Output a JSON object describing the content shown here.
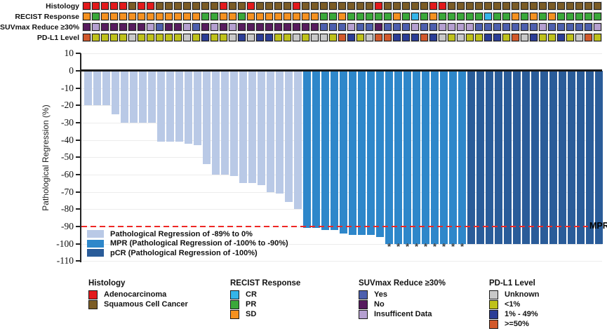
{
  "tracks": {
    "rows": [
      {
        "key": "histology",
        "label": "Histology",
        "cells": [
          "A",
          "A",
          "A",
          "A",
          "A",
          "S",
          "A",
          "A",
          "S",
          "S",
          "S",
          "S",
          "S",
          "S",
          "S",
          "A",
          "S",
          "S",
          "A",
          "S",
          "S",
          "S",
          "S",
          "A",
          "S",
          "S",
          "S",
          "S",
          "S",
          "S",
          "S",
          "S",
          "A",
          "S",
          "S",
          "S",
          "S",
          "S",
          "A",
          "A",
          "S",
          "S",
          "S",
          "S",
          "S",
          "S",
          "S",
          "S",
          "S",
          "S",
          "S",
          "S",
          "S",
          "S",
          "S",
          "S",
          "S"
        ]
      },
      {
        "key": "recist",
        "label": "RECIST Response",
        "cells": [
          "SD",
          "PR",
          "SD",
          "SD",
          "SD",
          "SD",
          "SD",
          "SD",
          "SD",
          "SD",
          "SD",
          "SD",
          "SD",
          "PR",
          "PR",
          "SD",
          "SD",
          "PR",
          "SD",
          "SD",
          "SD",
          "SD",
          "SD",
          "SD",
          "SD",
          "SD",
          "PR",
          "PR",
          "SD",
          "PR",
          "PR",
          "PR",
          "PR",
          "PR",
          "SD",
          "PR",
          "CR",
          "PR",
          "SD",
          "PR",
          "PR",
          "PR",
          "PR",
          "PR",
          "CR",
          "PR",
          "PR",
          "SD",
          "PR",
          "SD",
          "PR",
          "SD",
          "PR",
          "PR",
          "PR",
          "PR",
          "PR"
        ]
      },
      {
        "key": "suvmax",
        "label": "SUVmax Reduce ≥30%",
        "cells": [
          "N",
          "I",
          "N",
          "N",
          "N",
          "N",
          "N",
          "I",
          "Y",
          "N",
          "N",
          "I",
          "Y",
          "N",
          "I",
          "N",
          "I",
          "N",
          "N",
          "N",
          "N",
          "N",
          "N",
          "N",
          "N",
          "N",
          "Y",
          "Y",
          "Y",
          "I",
          "Y",
          "Y",
          "N",
          "Y",
          "Y",
          "Y",
          "I",
          "Y",
          "Y",
          "I",
          "I",
          "I",
          "I",
          "Y",
          "Y",
          "Y",
          "Y",
          "Y",
          "Y",
          "Y",
          "I",
          "Y",
          "Y",
          "Y",
          "Y",
          "Y",
          "I"
        ]
      },
      {
        "key": "pdl1",
        "label": "PD-L1 Level",
        "cells": [
          "H",
          "L",
          "L",
          "L",
          "L",
          "U",
          "L",
          "L",
          "L",
          "L",
          "L",
          "U",
          "L",
          "M",
          "L",
          "L",
          "U",
          "M",
          "U",
          "M",
          "M",
          "L",
          "L",
          "U",
          "L",
          "U",
          "U",
          "L",
          "H",
          "M",
          "L",
          "U",
          "H",
          "H",
          "M",
          "M",
          "M",
          "H",
          "M",
          "U",
          "L",
          "U",
          "L",
          "L",
          "M",
          "M",
          "L",
          "H",
          "U",
          "M",
          "L",
          "L",
          "M",
          "L",
          "U",
          "H",
          "L"
        ]
      }
    ],
    "palettes": {
      "histology": {
        "A": "#e31a1c",
        "S": "#7b5c26"
      },
      "recist": {
        "CR": "#35b5e9",
        "PR": "#3aa83a",
        "SD": "#f59120"
      },
      "suvmax": {
        "Y": "#4d5fae",
        "N": "#571b5e",
        "I": "#b59fd0"
      },
      "pdl1": {
        "U": "#c8c8c8",
        "L": "#bec11b",
        "M": "#2b3d96",
        "H": "#d2592b"
      }
    }
  },
  "chart_data": {
    "type": "bar",
    "title": "",
    "xlabel": "",
    "ylabel": "Pathological Regression (%)",
    "ylim": [
      -110,
      10
    ],
    "yticks": [
      10,
      0,
      -10,
      -20,
      -30,
      -40,
      -50,
      -60,
      -70,
      -80,
      -90,
      -100,
      -110
    ],
    "grid": true,
    "values": [
      -20,
      -20,
      -20,
      -25,
      -30,
      -30,
      -30,
      -30,
      -41,
      -41,
      -41,
      -42,
      -43,
      -54,
      -60,
      -60,
      -61,
      -65,
      -65,
      -66,
      -70,
      -71,
      -76,
      -80,
      -91,
      -91,
      -92,
      -92,
      -94,
      -95,
      -95,
      -95,
      -96,
      -100,
      -100,
      -100,
      -100,
      -100,
      -100,
      -100,
      -100,
      -100,
      -100,
      -100,
      -100,
      -100,
      -100,
      -100,
      -100,
      -100,
      -100,
      -100,
      -100,
      -100,
      -100,
      -100,
      -100
    ],
    "groups": [
      "L",
      "L",
      "L",
      "L",
      "L",
      "L",
      "L",
      "L",
      "L",
      "L",
      "L",
      "L",
      "L",
      "L",
      "L",
      "L",
      "L",
      "L",
      "L",
      "L",
      "L",
      "L",
      "L",
      "L",
      "M",
      "M",
      "M",
      "M",
      "M",
      "M",
      "M",
      "M",
      "M",
      "M",
      "M",
      "M",
      "M",
      "M",
      "M",
      "M",
      "M",
      "M",
      "D",
      "D",
      "D",
      "D",
      "D",
      "D",
      "D",
      "D",
      "D",
      "D",
      "D",
      "D",
      "D",
      "D",
      "D"
    ],
    "group_colors": {
      "L": "#b9c9e6",
      "M": "#2e87ca",
      "D": "#2a5c99"
    },
    "asterisk_bars": [
      34,
      35,
      36,
      37,
      38,
      39,
      40,
      41,
      42
    ],
    "asterisk_symbol": "*",
    "reference_line": {
      "value": -90,
      "label": "MPR",
      "color": "#ee2724",
      "style": "dashed"
    }
  },
  "inner_legend": [
    {
      "group": "L",
      "label": "Pathological Regression of -89% to 0%"
    },
    {
      "group": "M",
      "label": "MPR (Pathological Regression of -100% to -90%)"
    },
    {
      "group": "D",
      "label": "pCR (Pathological Regression of -100%)"
    }
  ],
  "bottom_legends": [
    {
      "title": "Histology",
      "items": [
        {
          "label": "Adenocarcinoma",
          "color": "#e31a1c"
        },
        {
          "label": "Squamous Cell Cancer",
          "color": "#7b5c26"
        }
      ]
    },
    {
      "title": "RECIST Response",
      "items": [
        {
          "label": "CR",
          "color": "#35b5e9"
        },
        {
          "label": "PR",
          "color": "#3aa83a"
        },
        {
          "label": "SD",
          "color": "#f59120"
        }
      ]
    },
    {
      "title": "SUVmax Reduce ≥30%",
      "items": [
        {
          "label": "Yes",
          "color": "#4d5fae"
        },
        {
          "label": "No",
          "color": "#571b5e"
        },
        {
          "label": "Insufficent Data",
          "color": "#b59fd0"
        }
      ]
    },
    {
      "title": "PD-L1 Level",
      "items": [
        {
          "label": "Unknown",
          "color": "#c8c8c8"
        },
        {
          "label": "<1%",
          "color": "#bec11b"
        },
        {
          "label": "1% - 49%",
          "color": "#2b3d96"
        },
        {
          "label": ">=50%",
          "color": "#d2592b"
        }
      ]
    }
  ]
}
